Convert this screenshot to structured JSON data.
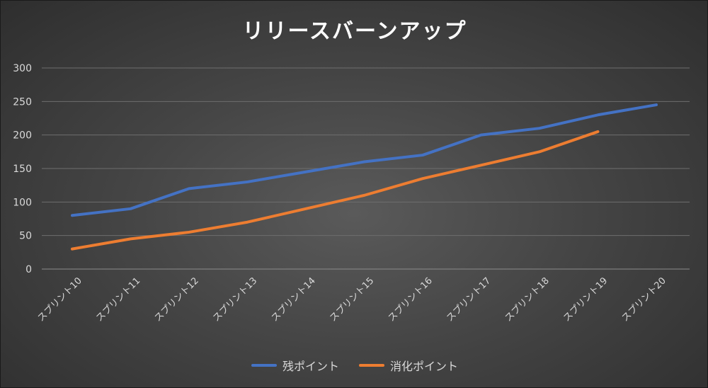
{
  "chart_data": {
    "type": "line",
    "title": "リリースバーンアップ",
    "categories": [
      "スプリント10",
      "スプリント11",
      "スプリント12",
      "スプリント13",
      "スプリント14",
      "スプリント15",
      "スプリント16",
      "スプリント17",
      "スプリント18",
      "スプリント19",
      "スプリント20"
    ],
    "series": [
      {
        "name": "残ポイント",
        "color": "#4472c4",
        "values": [
          80,
          90,
          120,
          130,
          145,
          160,
          170,
          200,
          210,
          230,
          245
        ]
      },
      {
        "name": "消化ポイント",
        "color": "#ed7d31",
        "values": [
          30,
          45,
          55,
          70,
          90,
          110,
          135,
          155,
          175,
          205,
          null
        ]
      }
    ],
    "yticks": [
      "0",
      "50",
      "100",
      "150",
      "200",
      "250",
      "300"
    ],
    "ylim": [
      0,
      300
    ],
    "grid": true,
    "legend_position": "bottom"
  }
}
